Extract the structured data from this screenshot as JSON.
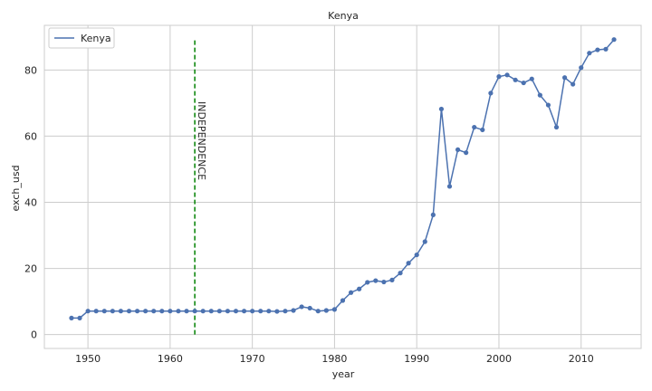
{
  "chart_data": {
    "type": "line",
    "title": "Kenya",
    "xlabel": "year",
    "ylabel": "exch_usd",
    "xlim": [
      1944.7,
      2017.3
    ],
    "ylim": [
      -4.2,
      93.5
    ],
    "xticks": [
      1950,
      1960,
      1970,
      1980,
      1990,
      2000,
      2010
    ],
    "yticks": [
      0,
      20,
      40,
      60,
      80
    ],
    "grid": true,
    "legend": {
      "placement": "top-left"
    },
    "series": [
      {
        "name": "Kenya",
        "color": "#4c72b0",
        "x": [
          1948,
          1949,
          1950,
          1951,
          1952,
          1953,
          1954,
          1955,
          1956,
          1957,
          1958,
          1959,
          1960,
          1961,
          1962,
          1963,
          1964,
          1965,
          1966,
          1967,
          1968,
          1969,
          1970,
          1971,
          1972,
          1973,
          1974,
          1975,
          1976,
          1977,
          1978,
          1979,
          1980,
          1981,
          1982,
          1983,
          1984,
          1985,
          1986,
          1987,
          1988,
          1989,
          1990,
          1991,
          1992,
          1993,
          1994,
          1995,
          1996,
          1997,
          1998,
          1999,
          2000,
          2001,
          2002,
          2003,
          2004,
          2005,
          2006,
          2007,
          2008,
          2009,
          2010,
          2011,
          2012,
          2013,
          2014
        ],
        "y": [
          5.0,
          5.0,
          7.1,
          7.1,
          7.1,
          7.1,
          7.1,
          7.1,
          7.1,
          7.1,
          7.1,
          7.1,
          7.1,
          7.1,
          7.1,
          7.1,
          7.1,
          7.1,
          7.1,
          7.1,
          7.1,
          7.1,
          7.1,
          7.1,
          7.1,
          7.0,
          7.1,
          7.3,
          8.4,
          8.0,
          7.1,
          7.3,
          7.6,
          10.3,
          12.7,
          13.8,
          15.8,
          16.3,
          15.9,
          16.5,
          18.6,
          21.6,
          24.1,
          28.1,
          36.2,
          68.2,
          44.8,
          55.9,
          55.0,
          62.7,
          61.9,
          73.0,
          78.0,
          78.5,
          77.0,
          76.1,
          77.3,
          72.4,
          69.4,
          62.7,
          77.7,
          75.7,
          80.7,
          85.1,
          86.1,
          86.3,
          89.2
        ]
      }
    ],
    "annotations": [
      {
        "type": "vline",
        "x": 1963,
        "y_range": [
          0,
          89.3
        ],
        "color": "#008000",
        "style": "dashed",
        "label": "INDEPENDENCE",
        "label_y": 70.5
      }
    ]
  }
}
